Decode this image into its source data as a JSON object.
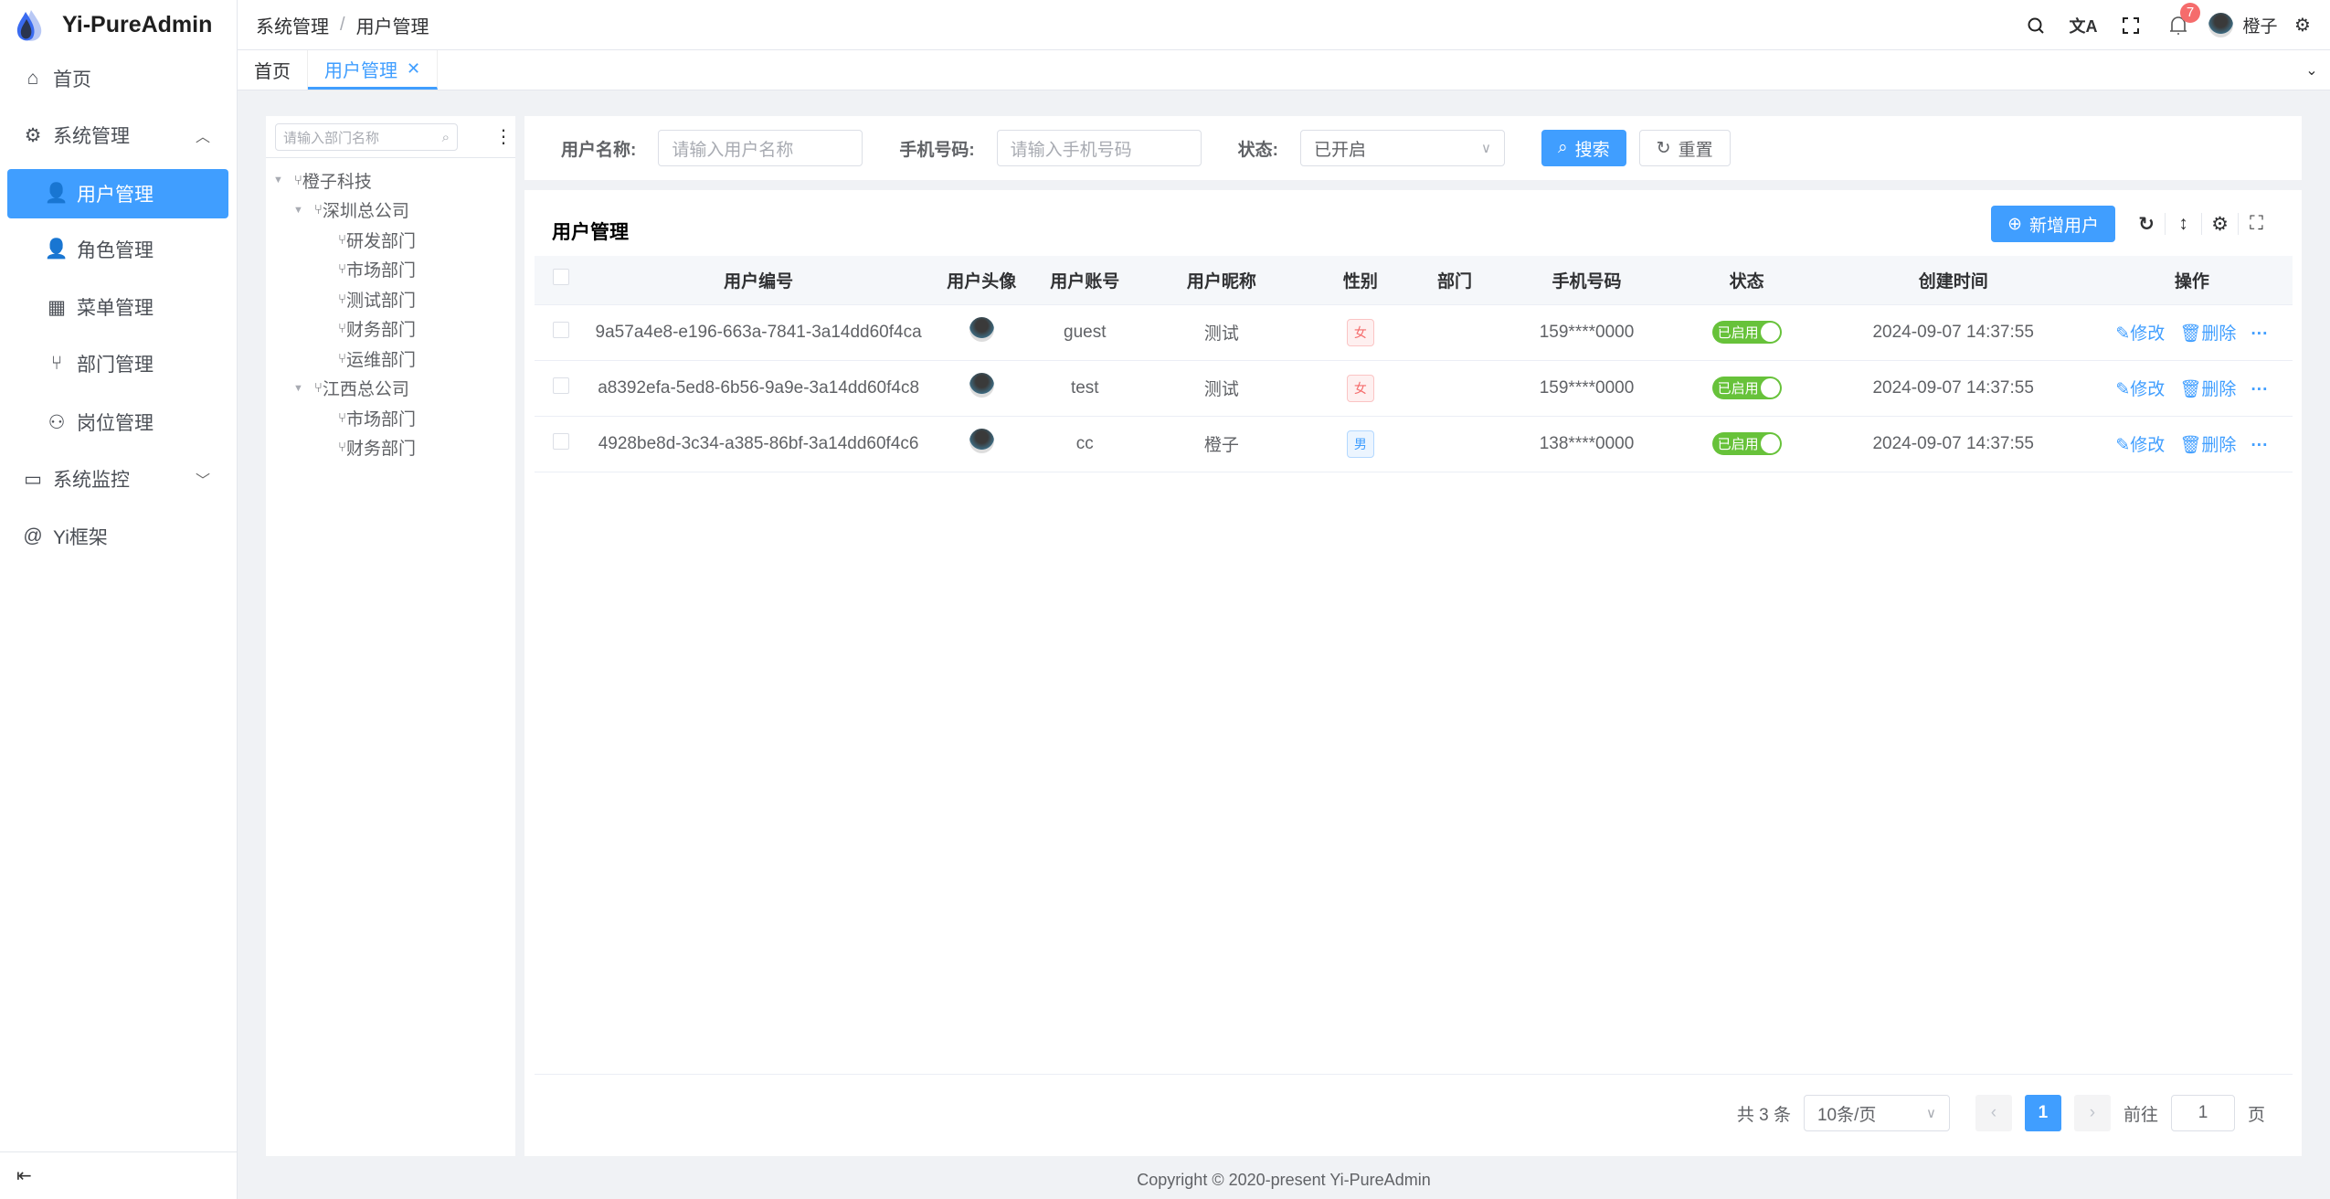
{
  "app": {
    "title": "Yi-PureAdmin",
    "accent": "#409eff"
  },
  "sidebar": {
    "items": [
      {
        "label": "首页",
        "icon": "home-icon"
      },
      {
        "label": "系统管理",
        "icon": "gear-icon",
        "expanded": true
      },
      {
        "label": "用户管理",
        "icon": "user-icon",
        "active": true
      },
      {
        "label": "角色管理",
        "icon": "user-role-icon"
      },
      {
        "label": "菜单管理",
        "icon": "grid-icon"
      },
      {
        "label": "部门管理",
        "icon": "branch-icon"
      },
      {
        "label": "岗位管理",
        "icon": "network-icon"
      },
      {
        "label": "系统监控",
        "icon": "monitor-icon",
        "expanded": false
      },
      {
        "label": "Yi框架",
        "icon": "at-icon"
      }
    ]
  },
  "header": {
    "breadcrumb": [
      "系统管理",
      "用户管理"
    ],
    "notifications": "7",
    "username": "橙子"
  },
  "tags": [
    {
      "label": "首页"
    },
    {
      "label": "用户管理",
      "active": true
    }
  ],
  "tree": {
    "placeholder": "请输入部门名称",
    "nodes": [
      {
        "label": "橙子科技",
        "level": 0
      },
      {
        "label": "深圳总公司",
        "level": 1
      },
      {
        "label": "研发部门",
        "level": 2
      },
      {
        "label": "市场部门",
        "level": 2
      },
      {
        "label": "测试部门",
        "level": 2
      },
      {
        "label": "财务部门",
        "level": 2
      },
      {
        "label": "运维部门",
        "level": 2
      },
      {
        "label": "江西总公司",
        "level": 1
      },
      {
        "label": "市场部门",
        "level": 2
      },
      {
        "label": "财务部门",
        "level": 2
      }
    ]
  },
  "search": {
    "username_label": "用户名称:",
    "username_placeholder": "请输入用户名称",
    "phone_label": "手机号码:",
    "phone_placeholder": "请输入手机号码",
    "status_label": "状态:",
    "status_value": "已开启",
    "search_btn": "搜索",
    "reset_btn": "重置"
  },
  "table": {
    "title": "用户管理",
    "add_btn": "新增用户",
    "columns": [
      "用户编号",
      "用户头像",
      "用户账号",
      "用户昵称",
      "性别",
      "部门",
      "手机号码",
      "状态",
      "创建时间",
      "操作"
    ],
    "rows": [
      {
        "id": "9a57a4e8-e196-663a-7841-3a14dd60f4ca",
        "account": "guest",
        "nickname": "测试",
        "gender": "女",
        "dept": "",
        "phone": "159****0000",
        "status": "已启用",
        "created": "2024-09-07 14:37:55"
      },
      {
        "id": "a8392efa-5ed8-6b56-9a9e-3a14dd60f4c8",
        "account": "test",
        "nickname": "测试",
        "gender": "女",
        "dept": "",
        "phone": "159****0000",
        "status": "已启用",
        "created": "2024-09-07 14:37:55"
      },
      {
        "id": "4928be8d-3c34-a385-86bf-3a14dd60f4c6",
        "account": "cc",
        "nickname": "橙子",
        "gender": "男",
        "dept": "",
        "phone": "138****0000",
        "status": "已启用",
        "created": "2024-09-07 14:37:55"
      }
    ],
    "edit": "修改",
    "delete": "删除"
  },
  "pager": {
    "total": "共 3 条",
    "size": "10条/页",
    "current": "1",
    "goto": "前往",
    "goto_value": "1",
    "page_unit": "页"
  },
  "footer": "Copyright © 2020-present Yi-PureAdmin"
}
